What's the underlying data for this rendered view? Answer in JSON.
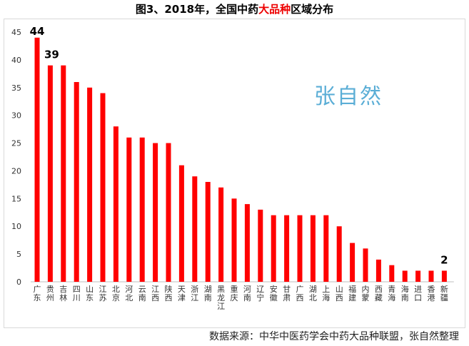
{
  "title": {
    "pre": "图3、2018年，全国中药",
    "highlight": "大品种",
    "post": "区域分布"
  },
  "source": "数据来源：中华中医药学会中药大品种联盟，张自然整理",
  "watermark": "张自然",
  "colors": {
    "bar": "#ff0000",
    "highlight": "#e00000"
  },
  "chart_data": {
    "type": "bar",
    "title": "图3、2018年，全国中药大品种区域分布",
    "xlabel": "",
    "ylabel": "",
    "ylim": [
      0,
      45
    ],
    "yticks": [
      0,
      5,
      10,
      15,
      20,
      25,
      30,
      35,
      40,
      45
    ],
    "grid": false,
    "categories": [
      "广东",
      "贵州",
      "吉林",
      "四川",
      "山东",
      "江苏",
      "北京",
      "河北",
      "云南",
      "江西",
      "陕西",
      "天津",
      "浙江",
      "湖南",
      "黑龙江",
      "重庆",
      "河南",
      "辽宁",
      "安徽",
      "甘肃",
      "广西",
      "湖北",
      "上海",
      "山西",
      "福建",
      "内蒙",
      "西藏",
      "青海",
      "海南",
      "进口",
      "香港",
      "新疆"
    ],
    "values": [
      44,
      39,
      39,
      36,
      35,
      34,
      28,
      26,
      26,
      25,
      25,
      21,
      19,
      18,
      17,
      15,
      14,
      13,
      12,
      12,
      12,
      12,
      12,
      10,
      7,
      6,
      4,
      3,
      2,
      2,
      2,
      2
    ],
    "data_labels": [
      {
        "category": "广东",
        "text": "44"
      },
      {
        "category": "贵州",
        "text": "39"
      },
      {
        "category": "新疆",
        "text": "2"
      }
    ]
  }
}
